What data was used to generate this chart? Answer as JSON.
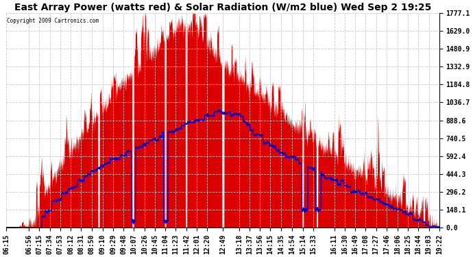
{
  "title": "East Array Power (watts red) & Solar Radiation (W/m2 blue) Wed Sep 2 19:25",
  "copyright": "Copyright 2009 Cartronics.com",
  "ylabel_right_vals": [
    1777.1,
    1629.0,
    1480.9,
    1332.9,
    1184.8,
    1036.7,
    888.6,
    740.5,
    592.4,
    444.3,
    296.2,
    148.1,
    0.0
  ],
  "ymax": 1777.1,
  "ymin": 0.0,
  "background": "#ffffff",
  "plot_bg": "#ffffff",
  "grid_color": "#c8c8c8",
  "title_fontsize": 10,
  "tick_fontsize": 7,
  "x_tick_labels": [
    "06:15",
    "06:56",
    "07:15",
    "07:34",
    "07:53",
    "08:12",
    "08:31",
    "08:50",
    "09:10",
    "09:29",
    "09:48",
    "10:07",
    "10:26",
    "10:45",
    "11:04",
    "11:23",
    "11:42",
    "12:01",
    "12:20",
    "12:49",
    "13:18",
    "13:37",
    "13:56",
    "14:15",
    "14:35",
    "14:54",
    "15:14",
    "15:33",
    "16:11",
    "16:30",
    "16:49",
    "17:08",
    "17:27",
    "17:46",
    "18:06",
    "18:25",
    "18:44",
    "19:03",
    "19:22"
  ],
  "fill_red": "#dd0000",
  "line_blue": "#0000cc"
}
